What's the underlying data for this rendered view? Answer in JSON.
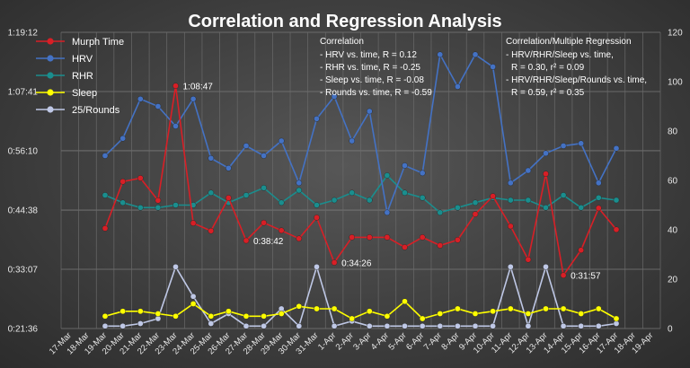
{
  "chart_data": {
    "type": "line",
    "title": "Correlation and Regression Analysis",
    "x": [
      "17-Mar",
      "18-Mar",
      "19-Mar",
      "20-Mar",
      "21-Mar",
      "22-Mar",
      "23-Mar",
      "24-Mar",
      "25-Mar",
      "26-Mar",
      "27-Mar",
      "28-Mar",
      "29-Mar",
      "30-Mar",
      "31-Mar",
      "1-Apr",
      "2-Apr",
      "3-Apr",
      "4-Apr",
      "5-Apr",
      "6-Apr",
      "7-Apr",
      "8-Apr",
      "9-Apr",
      "10-Apr",
      "11-Apr",
      "12-Apr",
      "13-Apr",
      "14-Apr",
      "15-Apr",
      "16-Apr",
      "17-Apr",
      "18-Apr",
      "19-Apr"
    ],
    "y_left": {
      "ticks": [
        "0:21:36",
        "0:33:07",
        "0:44:38",
        "0:56:10",
        "1:07:41",
        "1:19:12"
      ],
      "min_seconds": 1296,
      "max_seconds": 4752
    },
    "y_right": {
      "min": 0,
      "max": 120,
      "ticks": [
        0,
        20,
        40,
        60,
        80,
        100,
        120
      ]
    },
    "series": [
      {
        "name": "Murph Time",
        "axis": "left",
        "color": "#d81f26",
        "values": [
          null,
          null,
          "0:41:05",
          "0:50:10",
          "0:50:50",
          "0:46:30",
          "1:08:47",
          "0:42:05",
          "0:40:35",
          "0:47:00",
          "0:38:42",
          "0:42:10",
          "0:40:40",
          "0:39:05",
          "0:43:10",
          "0:34:26",
          "0:39:20",
          "0:39:20",
          "0:39:20",
          "0:37:25",
          "0:39:20",
          "0:37:45",
          "0:38:50",
          "0:43:50",
          "0:47:20",
          "0:41:30",
          "0:35:00",
          "0:51:40",
          "0:31:57",
          "0:36:50",
          "0:45:00",
          "0:40:50",
          null,
          null
        ]
      },
      {
        "name": "HRV",
        "axis": "right",
        "color": "#4472c4",
        "values": [
          null,
          null,
          70,
          77,
          93,
          90,
          82,
          93,
          69,
          65,
          74,
          70,
          76,
          59,
          85,
          94,
          76,
          88,
          47,
          66,
          63,
          111,
          98,
          111,
          106,
          59,
          64,
          71,
          74,
          75,
          59,
          73,
          null,
          null
        ]
      },
      {
        "name": "RHR",
        "axis": "right",
        "color": "#1a8e8e",
        "values": [
          null,
          null,
          54,
          51,
          49,
          49,
          50,
          50,
          55,
          51,
          54,
          57,
          51,
          56,
          50,
          52,
          55,
          52,
          62,
          55,
          53,
          47,
          49,
          51,
          53,
          52,
          52,
          49,
          54,
          49,
          53,
          52,
          null,
          null
        ]
      },
      {
        "name": "Sleep",
        "axis": "right",
        "color": "#ffff00",
        "values": [
          null,
          null,
          5,
          7,
          7,
          6,
          5,
          10,
          5,
          7,
          5,
          5,
          6,
          9,
          8,
          8,
          4,
          7,
          5,
          11,
          4,
          6,
          8,
          6,
          7,
          8,
          6,
          8,
          8,
          6,
          8,
          4,
          null,
          null
        ]
      },
      {
        "name": "25/Rounds",
        "axis": "right",
        "color": "#bfc8e6",
        "values": [
          null,
          null,
          1,
          1,
          2,
          4,
          25,
          13,
          2,
          6,
          1,
          1,
          8,
          1,
          25,
          1,
          3,
          1,
          1,
          1,
          1,
          1,
          1,
          1,
          1,
          25,
          1,
          25,
          1,
          1,
          1,
          2,
          null,
          null
        ]
      }
    ],
    "callouts": [
      {
        "series": "Murph Time",
        "index": 6,
        "label": "1:08:47"
      },
      {
        "series": "Murph Time",
        "index": 10,
        "label": "0:38:42"
      },
      {
        "series": "Murph Time",
        "index": 15,
        "label": "0:34:26"
      },
      {
        "series": "Murph Time",
        "index": 28,
        "label": "0:31:57"
      }
    ],
    "annotations": {
      "correlation": [
        "Correlation",
        "- HRV vs. time, R = 0.12",
        "- RHR vs. time, R = -0.25",
        "- Sleep vs. time, R = -0.08",
        "- Rounds vs. time, R = -0.59"
      ],
      "regression": [
        "Correlation/Multiple Regression",
        "- HRV/RHR/Sleep vs. time,",
        "R = 0.30, r² = 0.09",
        "- HRV/RHR/Sleep/Rounds vs. time,",
        "R = 0.59, r² = 0.35"
      ]
    },
    "legend_position": "top-left",
    "grid": true
  }
}
